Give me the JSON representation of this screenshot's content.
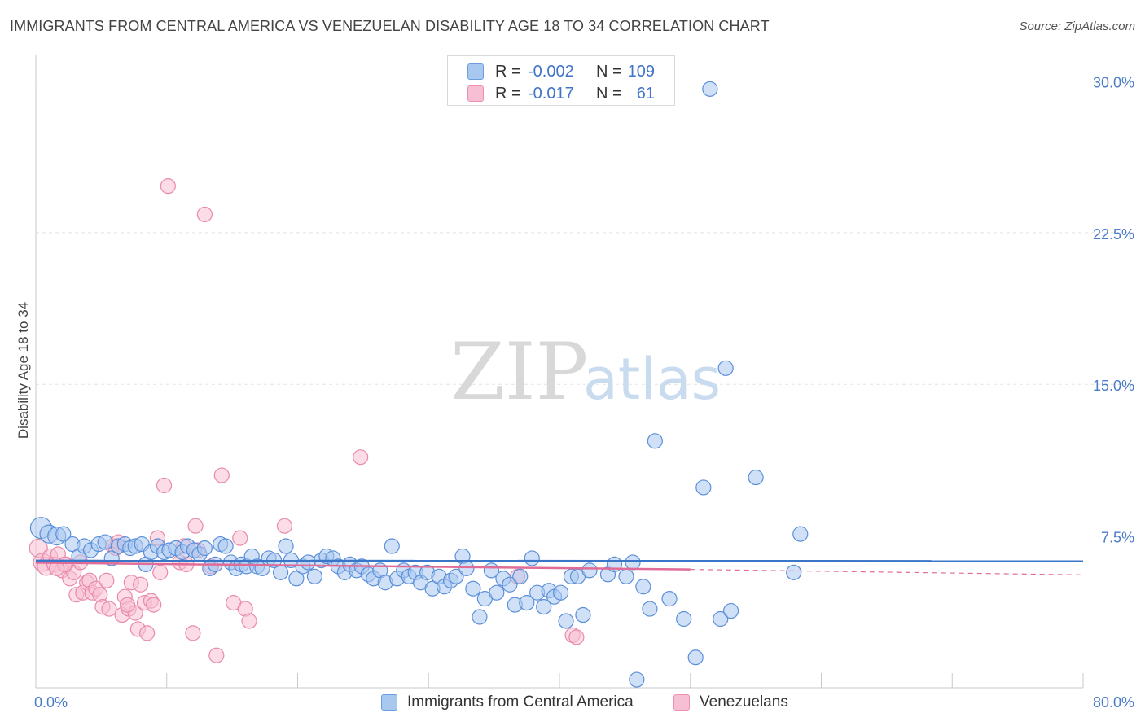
{
  "header": {
    "title": "IMMIGRANTS FROM CENTRAL AMERICA VS VENEZUELAN DISABILITY AGE 18 TO 34 CORRELATION CHART",
    "source": "Source: ZipAtlas.com"
  },
  "watermark": {
    "zip": "ZIP",
    "atlas": "atlas"
  },
  "legend": {
    "r_label": "R =",
    "n_label": "N =",
    "series": [
      {
        "name": "Immigrants from Central America",
        "r": "-0.002",
        "n": "109",
        "fill": "#a9c8f0",
        "stroke": "#6a9ee0"
      },
      {
        "name": "Venezuelans",
        "r": "-0.017",
        "n": "61",
        "fill": "#f7bfd3",
        "stroke": "#ec8fb0"
      }
    ]
  },
  "colors": {
    "blue_fill": "#a9c8f0",
    "blue_stroke": "#5b8fd9",
    "blue_line": "#3a76c8",
    "pink_fill": "#f7bfd3",
    "pink_stroke": "#e98aaa",
    "pink_line": "#e06c98",
    "grid": "#e3e3e3",
    "axis_text": "#4a7cc7"
  },
  "chart_data": {
    "type": "scatter",
    "title": "IMMIGRANTS FROM CENTRAL AMERICA VS VENEZUELAN DISABILITY AGE 18 TO 34 CORRELATION CHART",
    "xlabel": "",
    "ylabel": "Disability Age 18 to 34",
    "xlim": [
      0,
      80
    ],
    "ylim": [
      0,
      30.5
    ],
    "x_tick_labels": [
      "0.0%",
      "80.0%"
    ],
    "y_ticks": [
      7.5,
      15.0,
      22.5,
      30.0
    ],
    "y_tick_labels": [
      "7.5%",
      "15.0%",
      "22.5%",
      "30.0%"
    ],
    "grid": true,
    "series": [
      {
        "name": "Immigrants from Central America",
        "color": "#a9c8f0",
        "trend": {
          "x": [
            0,
            80
          ],
          "y": [
            6.28,
            6.26
          ],
          "extends_dashed_from": null
        },
        "points": [
          [
            0.4,
            7.9
          ],
          [
            1.0,
            7.6
          ],
          [
            1.6,
            7.5
          ],
          [
            2.1,
            7.6
          ],
          [
            2.8,
            7.1
          ],
          [
            3.3,
            6.5
          ],
          [
            3.7,
            7.0
          ],
          [
            4.2,
            6.8
          ],
          [
            4.8,
            7.1
          ],
          [
            5.3,
            7.2
          ],
          [
            5.8,
            6.4
          ],
          [
            6.3,
            7.0
          ],
          [
            6.8,
            7.1
          ],
          [
            7.2,
            6.9
          ],
          [
            7.6,
            7.0
          ],
          [
            8.1,
            7.1
          ],
          [
            8.4,
            6.1
          ],
          [
            8.8,
            6.7
          ],
          [
            9.3,
            7.0
          ],
          [
            9.8,
            6.7
          ],
          [
            10.2,
            6.8
          ],
          [
            10.7,
            6.9
          ],
          [
            11.2,
            6.7
          ],
          [
            11.6,
            7.0
          ],
          [
            12.1,
            6.8
          ],
          [
            12.5,
            6.6
          ],
          [
            12.9,
            6.9
          ],
          [
            13.3,
            5.9
          ],
          [
            13.7,
            6.1
          ],
          [
            14.1,
            7.1
          ],
          [
            14.5,
            7.0
          ],
          [
            14.9,
            6.2
          ],
          [
            15.3,
            5.9
          ],
          [
            15.7,
            6.1
          ],
          [
            16.1,
            6.0
          ],
          [
            16.5,
            6.5
          ],
          [
            16.9,
            6.0
          ],
          [
            17.3,
            5.9
          ],
          [
            17.8,
            6.4
          ],
          [
            18.2,
            6.3
          ],
          [
            18.7,
            5.7
          ],
          [
            19.1,
            7.0
          ],
          [
            19.5,
            6.3
          ],
          [
            19.9,
            5.4
          ],
          [
            20.4,
            6.0
          ],
          [
            20.8,
            6.2
          ],
          [
            21.3,
            5.5
          ],
          [
            21.8,
            6.3
          ],
          [
            22.2,
            6.5
          ],
          [
            22.7,
            6.4
          ],
          [
            23.1,
            6.0
          ],
          [
            23.6,
            5.7
          ],
          [
            24.0,
            6.1
          ],
          [
            24.5,
            5.8
          ],
          [
            24.9,
            6.0
          ],
          [
            25.4,
            5.6
          ],
          [
            25.8,
            5.4
          ],
          [
            26.3,
            5.8
          ],
          [
            26.7,
            5.2
          ],
          [
            27.2,
            7.0
          ],
          [
            27.6,
            5.4
          ],
          [
            28.1,
            5.8
          ],
          [
            28.5,
            5.5
          ],
          [
            29.0,
            5.7
          ],
          [
            29.4,
            5.2
          ],
          [
            29.9,
            5.7
          ],
          [
            30.3,
            4.9
          ],
          [
            30.8,
            5.5
          ],
          [
            31.2,
            5.0
          ],
          [
            31.7,
            5.3
          ],
          [
            32.1,
            5.5
          ],
          [
            32.6,
            6.5
          ],
          [
            32.9,
            5.9
          ],
          [
            33.4,
            4.9
          ],
          [
            33.9,
            3.5
          ],
          [
            34.3,
            4.4
          ],
          [
            34.8,
            5.8
          ],
          [
            35.2,
            4.7
          ],
          [
            35.7,
            5.4
          ],
          [
            36.2,
            5.1
          ],
          [
            36.6,
            4.1
          ],
          [
            37.0,
            5.5
          ],
          [
            37.5,
            4.2
          ],
          [
            37.9,
            6.4
          ],
          [
            38.3,
            4.7
          ],
          [
            38.8,
            4.0
          ],
          [
            39.2,
            4.8
          ],
          [
            39.6,
            4.5
          ],
          [
            40.1,
            4.7
          ],
          [
            40.5,
            3.3
          ],
          [
            40.9,
            5.5
          ],
          [
            41.4,
            5.5
          ],
          [
            41.8,
            3.6
          ],
          [
            42.3,
            5.8
          ],
          [
            43.7,
            5.6
          ],
          [
            45.1,
            5.5
          ],
          [
            45.6,
            6.2
          ],
          [
            46.4,
            5.0
          ],
          [
            46.9,
            3.9
          ],
          [
            47.3,
            12.2
          ],
          [
            48.4,
            4.4
          ],
          [
            49.5,
            3.4
          ],
          [
            50.4,
            1.5
          ],
          [
            51.0,
            9.9
          ],
          [
            52.3,
            3.4
          ],
          [
            52.7,
            15.8
          ],
          [
            53.1,
            3.8
          ],
          [
            55.0,
            10.4
          ],
          [
            57.9,
            5.7
          ],
          [
            58.4,
            7.6
          ],
          [
            51.5,
            29.6
          ],
          [
            45.9,
            0.4
          ],
          [
            44.2,
            6.1
          ]
        ]
      },
      {
        "name": "Venezuelans",
        "color": "#f7bfd3",
        "trend": {
          "x": [
            0,
            50
          ],
          "y": [
            6.18,
            5.85
          ],
          "dashed_x": [
            50,
            80
          ],
          "dashed_y": [
            5.85,
            5.58
          ]
        },
        "points": [
          [
            0.2,
            6.9
          ],
          [
            0.5,
            6.2
          ],
          [
            0.8,
            6.0
          ],
          [
            1.1,
            6.5
          ],
          [
            1.4,
            6.1
          ],
          [
            1.7,
            6.6
          ],
          [
            2.0,
            5.8
          ],
          [
            2.3,
            6.1
          ],
          [
            2.6,
            5.4
          ],
          [
            2.9,
            5.7
          ],
          [
            3.1,
            4.6
          ],
          [
            3.4,
            6.2
          ],
          [
            3.6,
            4.7
          ],
          [
            3.9,
            5.2
          ],
          [
            4.1,
            5.3
          ],
          [
            4.3,
            4.7
          ],
          [
            4.6,
            4.9
          ],
          [
            4.9,
            4.6
          ],
          [
            5.1,
            4.0
          ],
          [
            5.4,
            5.3
          ],
          [
            5.6,
            3.9
          ],
          [
            5.9,
            7.0
          ],
          [
            6.1,
            6.9
          ],
          [
            6.3,
            7.2
          ],
          [
            6.6,
            3.6
          ],
          [
            6.8,
            4.5
          ],
          [
            7.1,
            3.9
          ],
          [
            7.3,
            5.2
          ],
          [
            7.6,
            3.7
          ],
          [
            7.8,
            2.9
          ],
          [
            8.0,
            5.1
          ],
          [
            8.3,
            4.2
          ],
          [
            8.5,
            2.7
          ],
          [
            8.8,
            4.3
          ],
          [
            9.0,
            4.1
          ],
          [
            9.3,
            7.4
          ],
          [
            9.5,
            5.7
          ],
          [
            9.8,
            10.0
          ],
          [
            10.1,
            24.8
          ],
          [
            11.0,
            6.2
          ],
          [
            11.5,
            6.1
          ],
          [
            12.0,
            2.7
          ],
          [
            12.4,
            6.8
          ],
          [
            12.9,
            23.4
          ],
          [
            13.4,
            6.0
          ],
          [
            13.8,
            1.6
          ],
          [
            14.2,
            10.5
          ],
          [
            15.1,
            4.2
          ],
          [
            15.6,
            7.4
          ],
          [
            16.0,
            3.9
          ],
          [
            16.3,
            3.3
          ],
          [
            19.0,
            8.0
          ],
          [
            24.8,
            11.4
          ],
          [
            12.2,
            8.0
          ],
          [
            41.0,
            2.6
          ],
          [
            41.3,
            2.5
          ],
          [
            36.8,
            5.5
          ],
          [
            11.3,
            7.0
          ],
          [
            2.2,
            6.1
          ],
          [
            1.6,
            5.9
          ],
          [
            7.0,
            4.1
          ]
        ]
      }
    ]
  }
}
